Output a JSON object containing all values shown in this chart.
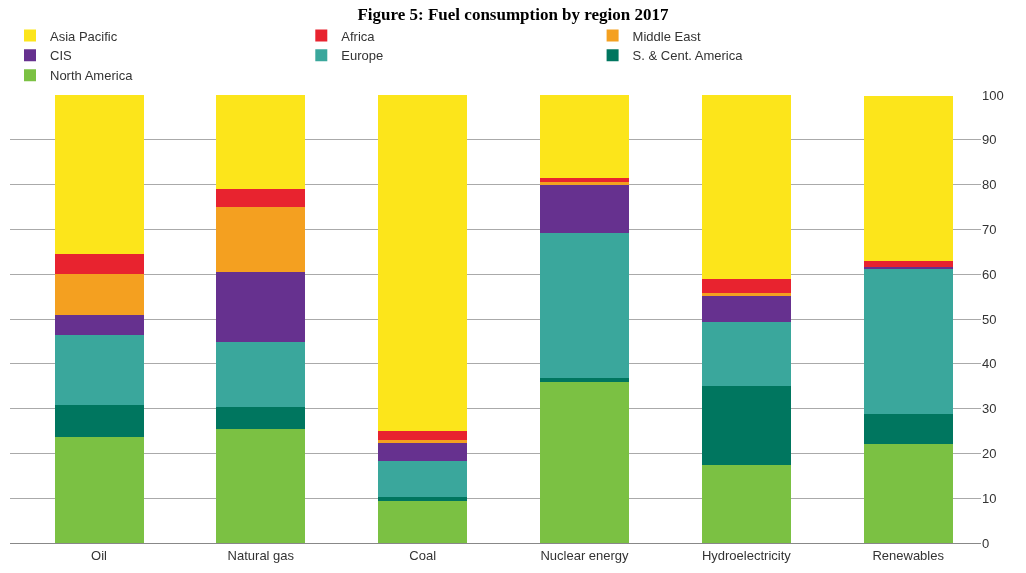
{
  "chart_data": {
    "type": "bar",
    "title": "Figure 5: Fuel consumption by region 2017",
    "stacked": true,
    "categories": [
      "Oil",
      "Natural gas",
      "Coal",
      "Nuclear energy",
      "Hydroelectricity",
      "Renewables"
    ],
    "series": [
      {
        "name": "North America",
        "color": "#7bc143",
        "values": [
          23.6,
          25.5,
          9.4,
          36.0,
          17.4,
          22.0
        ]
      },
      {
        "name": "S. & Cent. America",
        "color": "#00765f",
        "values": [
          7.2,
          4.8,
          0.9,
          0.8,
          17.7,
          6.7
        ]
      },
      {
        "name": "Europe",
        "color": "#3aa79c",
        "values": [
          15.6,
          14.5,
          7.9,
          32.4,
          14.3,
          32.6
        ]
      },
      {
        "name": "CIS",
        "color": "#66318f",
        "values": [
          4.6,
          15.7,
          4.2,
          10.9,
          5.8,
          0.4
        ]
      },
      {
        "name": "Middle East",
        "color": "#f4a020",
        "values": [
          9.0,
          14.6,
          0.6,
          0.4,
          0.7,
          null
        ]
      },
      {
        "name": "Africa",
        "color": "#e8232f",
        "values": [
          4.4,
          4.0,
          2.1,
          0.9,
          3.1,
          1.3
        ]
      },
      {
        "name": "Asia Pacific",
        "color": "#fce51b",
        "values": [
          35.6,
          20.9,
          74.9,
          18.6,
          41.0,
          36.8
        ]
      }
    ],
    "ylim": [
      0,
      100
    ],
    "yticks": [
      0,
      10,
      20,
      30,
      40,
      50,
      60,
      70,
      80,
      90,
      100
    ],
    "grid": "y",
    "legend": "top left"
  }
}
